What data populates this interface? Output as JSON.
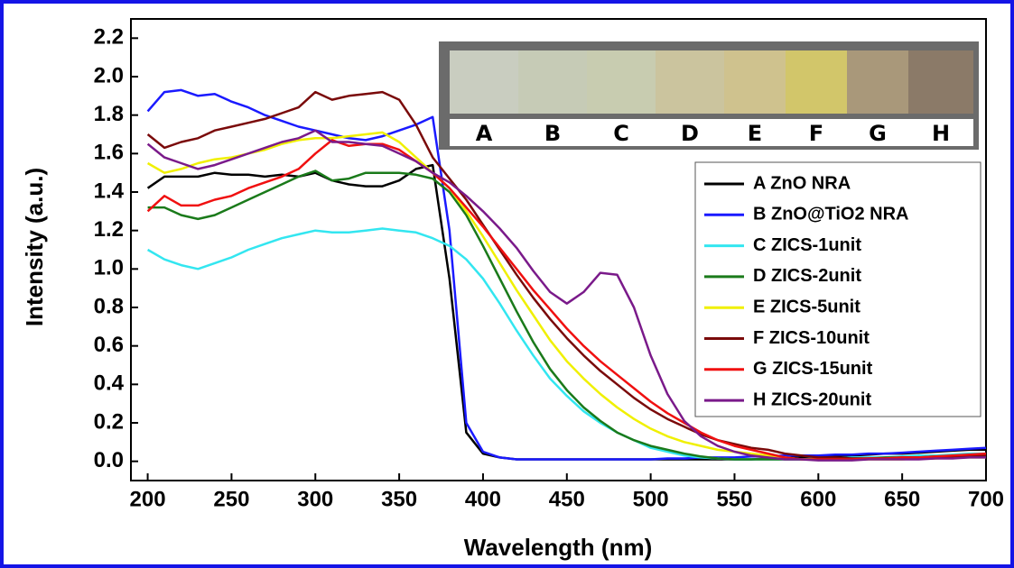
{
  "chart_data": {
    "type": "line",
    "x_label": "Wavelength (nm)",
    "y_label": "Intensity (a.u.)",
    "xlim": [
      190,
      700
    ],
    "ylim": [
      -0.1,
      2.3
    ],
    "xticks": [
      200,
      250,
      300,
      350,
      400,
      450,
      500,
      550,
      600,
      650,
      700
    ],
    "yticks": [
      {
        "value": 0,
        "label": "0.0"
      },
      0.2,
      0.4,
      0.6,
      0.8,
      {
        "value": 1,
        "label": "1.0"
      },
      1.2,
      1.4,
      1.6,
      1.8,
      {
        "value": 2,
        "label": "2.0"
      },
      2.2
    ],
    "legend_position": "right",
    "inset_labels": [
      "A",
      "B",
      "C",
      "D",
      "E",
      "F",
      "G",
      "H"
    ],
    "x": [
      200,
      210,
      220,
      230,
      240,
      250,
      260,
      270,
      280,
      290,
      300,
      310,
      320,
      330,
      340,
      350,
      360,
      370,
      380,
      390,
      400,
      410,
      420,
      430,
      440,
      450,
      460,
      470,
      480,
      490,
      500,
      510,
      520,
      530,
      540,
      550,
      560,
      570,
      580,
      590,
      600,
      610,
      620,
      630,
      640,
      650,
      660,
      670,
      680,
      690,
      700
    ],
    "series": [
      {
        "name": "A ZnO NRA",
        "color": "#000000",
        "values": [
          1.42,
          1.48,
          1.48,
          1.48,
          1.5,
          1.49,
          1.49,
          1.48,
          1.49,
          1.48,
          1.5,
          1.46,
          1.44,
          1.43,
          1.43,
          1.46,
          1.52,
          1.54,
          0.95,
          0.15,
          0.04,
          0.02,
          0.01,
          0.01,
          0.01,
          0.01,
          0.01,
          0.01,
          0.01,
          0.01,
          0.01,
          0.01,
          0.01,
          0.01,
          0.01,
          0.01,
          0.01,
          0.015,
          0.02,
          0.02,
          0.025,
          0.03,
          0.03,
          0.035,
          0.04,
          0.04,
          0.045,
          0.05,
          0.055,
          0.06,
          0.06
        ]
      },
      {
        "name": "B ZnO@TiO2 NRA",
        "color": "#1a1aff",
        "values": [
          1.82,
          1.92,
          1.93,
          1.9,
          1.91,
          1.87,
          1.84,
          1.8,
          1.77,
          1.74,
          1.72,
          1.7,
          1.68,
          1.67,
          1.69,
          1.72,
          1.75,
          1.79,
          1.2,
          0.2,
          0.05,
          0.02,
          0.01,
          0.01,
          0.01,
          0.01,
          0.01,
          0.01,
          0.01,
          0.01,
          0.01,
          0.015,
          0.015,
          0.02,
          0.02,
          0.02,
          0.025,
          0.025,
          0.03,
          0.03,
          0.03,
          0.035,
          0.035,
          0.04,
          0.04,
          0.045,
          0.05,
          0.055,
          0.06,
          0.065,
          0.07
        ]
      },
      {
        "name": "C ZICS-1unit",
        "color": "#33e6f0",
        "values": [
          1.1,
          1.05,
          1.02,
          1.0,
          1.03,
          1.06,
          1.1,
          1.13,
          1.16,
          1.18,
          1.2,
          1.19,
          1.19,
          1.2,
          1.21,
          1.2,
          1.19,
          1.16,
          1.12,
          1.05,
          0.95,
          0.82,
          0.68,
          0.55,
          0.43,
          0.34,
          0.26,
          0.2,
          0.15,
          0.11,
          0.07,
          0.05,
          0.03,
          0.02,
          0.015,
          0.01,
          0.01,
          0.01,
          0.01,
          0.01,
          0.015,
          0.015,
          0.02,
          0.02,
          0.02,
          0.025,
          0.03,
          0.03,
          0.035,
          0.04,
          0.04
        ]
      },
      {
        "name": "D ZICS-2unit",
        "color": "#1a7a1a",
        "values": [
          1.32,
          1.32,
          1.28,
          1.26,
          1.28,
          1.32,
          1.36,
          1.4,
          1.44,
          1.48,
          1.51,
          1.46,
          1.47,
          1.5,
          1.5,
          1.5,
          1.49,
          1.47,
          1.4,
          1.28,
          1.12,
          0.95,
          0.78,
          0.62,
          0.48,
          0.37,
          0.28,
          0.21,
          0.15,
          0.11,
          0.08,
          0.06,
          0.04,
          0.025,
          0.015,
          0.01,
          0.01,
          0.01,
          0.01,
          0.01,
          0.01,
          0.01,
          0.015,
          0.015,
          0.02,
          0.02,
          0.02,
          0.025,
          0.025,
          0.03,
          0.03
        ]
      },
      {
        "name": "E ZICS-5unit",
        "color": "#f0f000",
        "values": [
          1.55,
          1.5,
          1.52,
          1.55,
          1.57,
          1.58,
          1.6,
          1.62,
          1.65,
          1.67,
          1.68,
          1.68,
          1.69,
          1.7,
          1.71,
          1.66,
          1.58,
          1.5,
          1.42,
          1.3,
          1.17,
          1.03,
          0.89,
          0.76,
          0.63,
          0.52,
          0.43,
          0.35,
          0.28,
          0.22,
          0.17,
          0.13,
          0.1,
          0.08,
          0.06,
          0.05,
          0.04,
          0.03,
          0.02,
          0.01,
          0.01,
          0.01,
          0.01,
          0.01,
          0.01,
          0.01,
          0.015,
          0.015,
          0.02,
          0.02,
          0.02
        ]
      },
      {
        "name": "F ZICS-10unit",
        "color": "#7a0a0a",
        "values": [
          1.7,
          1.63,
          1.66,
          1.68,
          1.72,
          1.74,
          1.76,
          1.78,
          1.81,
          1.84,
          1.92,
          1.88,
          1.9,
          1.91,
          1.92,
          1.88,
          1.75,
          1.58,
          1.47,
          1.36,
          1.23,
          1.1,
          0.97,
          0.85,
          0.74,
          0.64,
          0.55,
          0.47,
          0.4,
          0.33,
          0.27,
          0.22,
          0.18,
          0.14,
          0.11,
          0.09,
          0.07,
          0.06,
          0.04,
          0.03,
          0.02,
          0.02,
          0.015,
          0.015,
          0.015,
          0.02,
          0.02,
          0.02,
          0.025,
          0.03,
          0.03
        ]
      },
      {
        "name": "G ZICS-15unit",
        "color": "#f01010",
        "values": [
          1.3,
          1.38,
          1.33,
          1.33,
          1.36,
          1.38,
          1.42,
          1.45,
          1.48,
          1.52,
          1.6,
          1.67,
          1.64,
          1.65,
          1.65,
          1.62,
          1.56,
          1.5,
          1.42,
          1.32,
          1.22,
          1.11,
          1.0,
          0.89,
          0.79,
          0.69,
          0.6,
          0.52,
          0.45,
          0.38,
          0.31,
          0.25,
          0.2,
          0.15,
          0.11,
          0.08,
          0.06,
          0.04,
          0.02,
          0.01,
          0.01,
          0.01,
          0.01,
          0.015,
          0.015,
          0.02,
          0.02,
          0.025,
          0.03,
          0.035,
          0.04
        ]
      },
      {
        "name": "H ZICS-20unit",
        "color": "#7a1a8a",
        "values": [
          1.65,
          1.58,
          1.55,
          1.52,
          1.54,
          1.57,
          1.6,
          1.63,
          1.66,
          1.68,
          1.72,
          1.66,
          1.66,
          1.65,
          1.64,
          1.6,
          1.56,
          1.5,
          1.45,
          1.38,
          1.3,
          1.21,
          1.11,
          0.99,
          0.88,
          0.82,
          0.88,
          0.98,
          0.97,
          0.8,
          0.55,
          0.35,
          0.21,
          0.13,
          0.08,
          0.05,
          0.03,
          0.02,
          0.01,
          0.01,
          0.005,
          0.005,
          0.005,
          0.01,
          0.01,
          0.01,
          0.01,
          0.015,
          0.015,
          0.02,
          0.02
        ]
      }
    ]
  }
}
